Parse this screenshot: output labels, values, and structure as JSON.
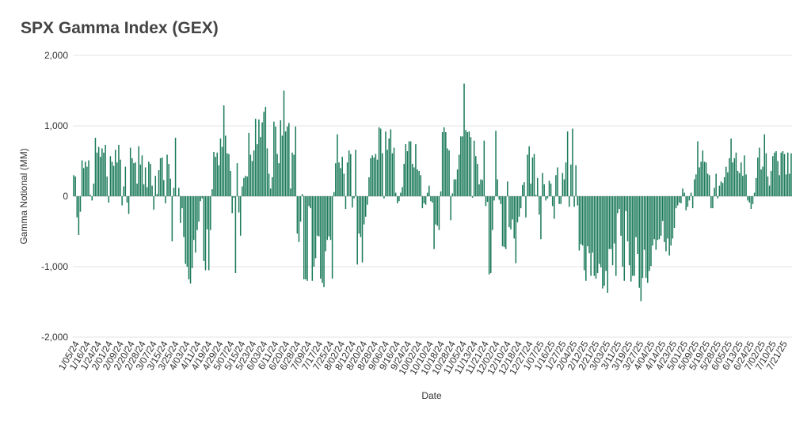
{
  "chart_data": {
    "type": "bar",
    "title": "SPX Gamma Index (GEX)",
    "xlabel": "Date",
    "ylabel": "Gamma Notional (MM)",
    "ylim": [
      -2000,
      2000
    ],
    "yticks": [
      -2000,
      -1000,
      0,
      1000,
      2000
    ],
    "ytick_labels": [
      "-2,000",
      "-1,000",
      "0",
      "1,000",
      "2,000"
    ],
    "grid": true,
    "legend": "none",
    "color": "#1b7a5a",
    "x_tick_labels": [
      "1/05/24",
      "1/16/24",
      "1/24/24",
      "2/01/24",
      "2/09/24",
      "2/20/24",
      "2/28/24",
      "3/07/24",
      "3/15/24",
      "3/25/24",
      "4/03/24",
      "4/11/24",
      "4/19/24",
      "4/29/24",
      "5/07/24",
      "5/15/24",
      "5/23/24",
      "6/03/24",
      "6/11/24",
      "6/20/24",
      "6/28/24",
      "7/09/24",
      "7/17/24",
      "7/25/24",
      "8/02/24",
      "8/12/24",
      "8/20/24",
      "8/28/24",
      "9/06/24",
      "9/16/24",
      "9/24/24",
      "10/02/24",
      "10/10/24",
      "10/18/24",
      "10/28/24",
      "11/05/24",
      "11/13/24",
      "11/21/24",
      "12/02/24",
      "12/10/24",
      "12/18/24",
      "12/27/24",
      "1/07/25",
      "1/16/25",
      "1/27/25",
      "2/04/25",
      "2/12/25",
      "2/21/25",
      "3/03/25",
      "3/11/25",
      "3/19/25",
      "3/27/25",
      "4/04/25",
      "4/14/25",
      "4/23/25",
      "5/01/25",
      "5/09/25",
      "5/19/25",
      "5/28/25",
      "6/05/25",
      "6/13/25",
      "6/24/25",
      "7/02/25",
      "7/10/25",
      "7/21/25"
    ],
    "values": [
      300,
      280,
      -300,
      -550,
      -220,
      510,
      400,
      490,
      420,
      510,
      20,
      -60,
      180,
      830,
      620,
      700,
      560,
      680,
      620,
      730,
      280,
      -90,
      570,
      490,
      430,
      660,
      480,
      730,
      520,
      -130,
      140,
      420,
      -90,
      -250,
      690,
      540,
      470,
      480,
      180,
      710,
      450,
      580,
      170,
      410,
      130,
      490,
      460,
      150,
      -190,
      290,
      30,
      370,
      540,
      550,
      230,
      -100,
      590,
      460,
      250,
      -640,
      120,
      830,
      10,
      120,
      -380,
      -170,
      -580,
      -960,
      -1000,
      -1180,
      -1240,
      -1020,
      -620,
      -800,
      -480,
      -360,
      -70,
      -30,
      -920,
      -1050,
      -470,
      -1050,
      -480,
      100,
      630,
      560,
      620,
      440,
      820,
      700,
      1290,
      860,
      610,
      600,
      360,
      -240,
      -20,
      -1090,
      470,
      -230,
      -560,
      140,
      260,
      290,
      280,
      900,
      590,
      500,
      650,
      1100,
      740,
      1090,
      840,
      1050,
      1200,
      1270,
      680,
      320,
      110,
      270,
      1060,
      990,
      600,
      470,
      1080,
      860,
      1500,
      920,
      990,
      1040,
      110,
      620,
      590,
      990,
      -530,
      -650,
      -360,
      30,
      -1180,
      -1180,
      -1200,
      -140,
      -170,
      -1200,
      -1000,
      -880,
      -560,
      -570,
      -1170,
      -1230,
      -1290,
      -780,
      -620,
      -570,
      -620,
      -1170,
      60,
      470,
      880,
      480,
      400,
      560,
      320,
      -180,
      480,
      650,
      600,
      -160,
      -30,
      660,
      -970,
      -530,
      -580,
      -940,
      -400,
      -290,
      -120,
      270,
      540,
      580,
      550,
      600,
      520,
      980,
      960,
      610,
      -30,
      920,
      660,
      820,
      950,
      610,
      690,
      50,
      -100,
      -70,
      50,
      130,
      460,
      740,
      640,
      780,
      780,
      460,
      410,
      740,
      380,
      360,
      300,
      -170,
      -100,
      -120,
      50,
      150,
      -70,
      -90,
      -750,
      -400,
      -420,
      -480,
      70,
      910,
      980,
      910,
      680,
      650,
      -340,
      40,
      240,
      240,
      380,
      590,
      850,
      850,
      1600,
      940,
      910,
      920,
      840,
      -20,
      790,
      570,
      460,
      170,
      240,
      230,
      790,
      -140,
      -80,
      -1110,
      -1090,
      -480,
      -60,
      930,
      240,
      -50,
      -110,
      -710,
      -720,
      -750,
      210,
      -440,
      -470,
      -330,
      -600,
      -950,
      -370,
      -290,
      -170,
      160,
      200,
      -300,
      590,
      710,
      180,
      550,
      600,
      20,
      260,
      -260,
      -610,
      330,
      170,
      -60,
      -30,
      220,
      180,
      -140,
      -320,
      300,
      410,
      -110,
      -110,
      330,
      240,
      480,
      920,
      -150,
      450,
      960,
      -150,
      440,
      -130,
      -770,
      -680,
      -700,
      -1050,
      -1200,
      -710,
      -810,
      -1130,
      -800,
      -1130,
      -1170,
      -1090,
      -960,
      -1010,
      -1310,
      -1270,
      -1060,
      -1370,
      -750,
      -750,
      -980,
      -670,
      -1130,
      -240,
      -180,
      -560,
      -1000,
      -1200,
      -210,
      -640,
      -980,
      -1210,
      -1130,
      -1130,
      -580,
      -820,
      -1300,
      -1490,
      -1160,
      -760,
      -1160,
      -1230,
      -1060,
      -990,
      -700,
      -610,
      -760,
      -620,
      -610,
      -560,
      -350,
      -650,
      -780,
      -600,
      -840,
      -700,
      -600,
      -450,
      -170,
      -130,
      -90,
      -100,
      110,
      50,
      -200,
      -150,
      -60,
      50,
      -170,
      240,
      310,
      780,
      410,
      490,
      650,
      490,
      480,
      320,
      300,
      -170,
      -170,
      120,
      320,
      -30,
      150,
      210,
      190,
      270,
      420,
      340,
      540,
      820,
      480,
      540,
      620,
      360,
      330,
      480,
      290,
      580,
      310,
      -60,
      -90,
      -180,
      -110,
      50,
      260,
      550,
      690,
      380,
      420,
      880,
      610,
      280,
      150,
      360,
      570,
      620,
      640,
      500,
      300,
      620,
      640,
      600,
      310,
      620,
      320,
      610
    ]
  }
}
